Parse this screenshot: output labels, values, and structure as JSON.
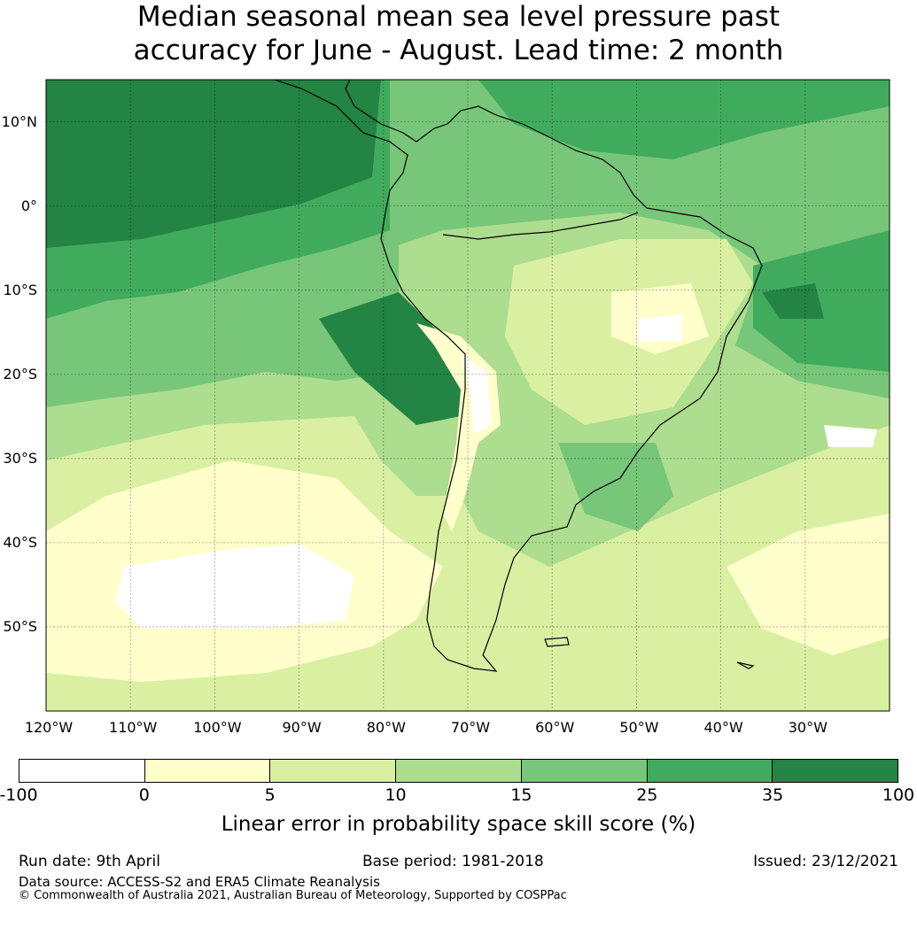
{
  "title": {
    "line1": "Median seasonal mean sea level pressure past",
    "line2": "accuracy for June - August. Lead time: 2 month"
  },
  "map": {
    "lat_labels": [
      "10°N",
      "0°",
      "10°S",
      "20°S",
      "30°S",
      "40°S",
      "50°S"
    ],
    "lon_labels": [
      "120°W",
      "110°W",
      "100°W",
      "90°W",
      "80°W",
      "70°W",
      "60°W",
      "50°W",
      "40°W",
      "30°W"
    ],
    "lat_range": [
      -60,
      15
    ],
    "lon_range": [
      -120,
      -20
    ],
    "gridlines": true
  },
  "colorbar": {
    "ticks": [
      "-100",
      "0",
      "5",
      "10",
      "15",
      "25",
      "35",
      "100"
    ],
    "colors": [
      "#ffffff",
      "#ffffcc",
      "#d9f0a3",
      "#addd8e",
      "#78c679",
      "#41ab5d",
      "#238443"
    ],
    "label": "Linear error in probability space skill score (%)"
  },
  "footer": {
    "run_date": "Run date: 9th April",
    "base_period": "Base period: 1981-2018",
    "issued": "Issued: 23/12/2021",
    "data_source": "Data source: ACCESS-S2 and ERA5 Climate Reanalysis",
    "copyright": "© Commonwealth of Australia 2021, Australian Bureau of Meteorology, Supported by COSPPac"
  }
}
